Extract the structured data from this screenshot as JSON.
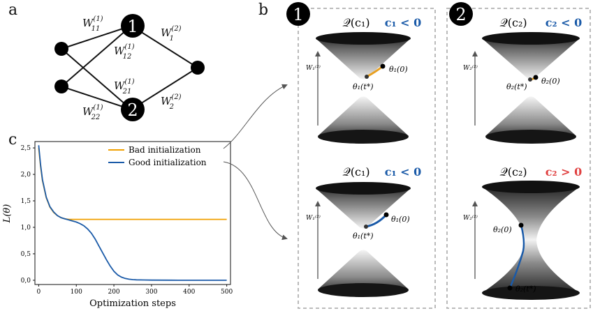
{
  "panel_labels": {
    "a": "a",
    "b": "b",
    "c": "c"
  },
  "network": {
    "node1": "1",
    "node2": "2",
    "weights": {
      "w11": "W",
      "w11_sup": "(1)",
      "w11_sub": "11",
      "w12": "W",
      "w12_sup": "(1)",
      "w12_sub": "12",
      "w21": "W",
      "w21_sup": "(1)",
      "w21_sub": "21",
      "w22": "W",
      "w22_sup": "(1)",
      "w22_sub": "22",
      "w1": "W",
      "w1_sup": "(2)",
      "w1_sub": "1",
      "w2": "W",
      "w2_sup": "(2)",
      "w2_sub": "2"
    }
  },
  "chart_data": {
    "type": "line",
    "xlabel": "Optimization steps",
    "ylabel": "L(θ)",
    "xlim": [
      -10,
      510
    ],
    "ylim": [
      -0.08,
      2.62
    ],
    "xticks": [
      0,
      100,
      200,
      300,
      400,
      500
    ],
    "yticks": [
      0.0,
      0.5,
      1.0,
      1.5,
      2.0,
      2.5
    ],
    "ytick_labels": [
      "0,0",
      "0,5",
      "1,0",
      "1,5",
      "2,0",
      "2,5"
    ],
    "legend_position": "top-right",
    "series": [
      {
        "name": "Bad initialization",
        "color": "#f0a000",
        "x": [
          0,
          5,
          10,
          20,
          30,
          40,
          50,
          60,
          70,
          80,
          90,
          100,
          150,
          200,
          300,
          400,
          500
        ],
        "y": [
          2.5,
          2.15,
          1.88,
          1.56,
          1.38,
          1.28,
          1.22,
          1.18,
          1.16,
          1.15,
          1.15,
          1.15,
          1.15,
          1.15,
          1.15,
          1.15,
          1.15
        ]
      },
      {
        "name": "Good initialization",
        "color": "#1a5aa8",
        "x": [
          0,
          5,
          10,
          20,
          30,
          40,
          50,
          60,
          70,
          80,
          90,
          100,
          110,
          120,
          130,
          140,
          150,
          160,
          170,
          180,
          190,
          200,
          210,
          220,
          230,
          240,
          250,
          260,
          280,
          300,
          350,
          400,
          500
        ],
        "y": [
          2.55,
          2.18,
          1.9,
          1.57,
          1.39,
          1.29,
          1.22,
          1.18,
          1.16,
          1.14,
          1.12,
          1.1,
          1.07,
          1.03,
          0.97,
          0.89,
          0.78,
          0.65,
          0.52,
          0.39,
          0.27,
          0.17,
          0.1,
          0.06,
          0.035,
          0.02,
          0.012,
          0.008,
          0.005,
          0.003,
          0.002,
          0.001,
          0.001
        ]
      }
    ]
  },
  "panels_b": [
    {
      "badge": "1",
      "title": "𝒬(c₁)",
      "condition": "c₁ < 0",
      "condition_color": "#1a5aa8",
      "axis_label": "W₁⁽²⁾",
      "point_start": "θ₁(0)",
      "point_end": "θ₁(t*)",
      "path_color": "#e8a020"
    },
    {
      "badge": "2",
      "title": "𝒬(c₂)",
      "condition": "c₂ < 0",
      "condition_color": "#1a5aa8",
      "axis_label": "W₂⁽²⁾",
      "point_start": "θ₂(0)",
      "point_end": "θ₂(t*)",
      "path_color": "#e8a020"
    },
    {
      "badge": "",
      "title": "𝒬(c₁)",
      "condition": "c₁ < 0",
      "condition_color": "#1a5aa8",
      "axis_label": "W₁⁽²⁾",
      "point_start": "θ₁(0)",
      "point_end": "θ₁(t*)",
      "path_color": "#1a5aa8"
    },
    {
      "badge": "",
      "title": "𝒬(c₂)",
      "condition": "c₂ > 0",
      "condition_color": "#e04040",
      "axis_label": "W₂⁽²⁾",
      "point_start": "θ₂(0)",
      "point_end": "θ₂(t*)",
      "path_color": "#1a5aa8"
    }
  ]
}
